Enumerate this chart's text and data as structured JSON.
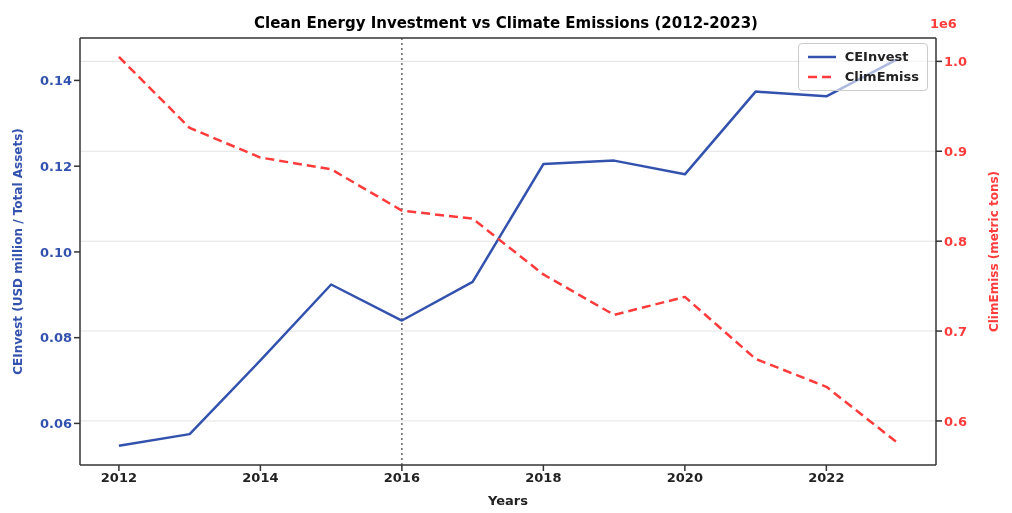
{
  "chart_data": {
    "type": "line",
    "title": "Clean Energy Investment vs Climate Emissions (2012-2023)",
    "xlabel": "Years",
    "ylabel": "CEInvest (USD million / Total Assets)",
    "y2label": "ClimEmiss (metric tons)",
    "x": [
      2012,
      2013,
      2014,
      2015,
      2016,
      2017,
      2018,
      2019,
      2020,
      2021,
      2022,
      2023
    ],
    "series": [
      {
        "name": "CEInvest",
        "color": "#3352ae",
        "line_style": "solid",
        "values": [
          0.0548,
          0.0575,
          0.0747,
          0.0924,
          0.084,
          0.093,
          0.1205,
          0.1213,
          0.1181,
          0.1374,
          0.1363,
          0.1449
        ]
      },
      {
        "name": "ClimEmiss",
        "color": "#ff3b3b",
        "line_style": "dashed",
        "axis": "y2",
        "values": [
          1.005,
          0.926,
          0.893,
          0.88,
          0.834,
          0.825,
          0.763,
          0.718,
          0.738,
          0.669,
          0.638,
          0.576
        ]
      }
    ],
    "xlim": [
      2011.45,
      2023.55
    ],
    "xticks": [
      2012,
      2014,
      2016,
      2018,
      2020,
      2022
    ],
    "ylim": [
      0.0503,
      0.1499
    ],
    "yticks": [
      0.06,
      0.08,
      {
        "value": 0.1,
        "label": "0.10"
      },
      0.12,
      0.14
    ],
    "y2lim": [
      0.551,
      1.026
    ],
    "y2ticks": [
      0.6,
      0.7,
      0.8,
      0.9,
      {
        "value": 1.0,
        "label": "1.0"
      }
    ],
    "annotations": [
      "1e6"
    ],
    "ref_lines": [
      {
        "axis": "x",
        "value": 2016,
        "color": "#666666",
        "line_style": "dotted"
      }
    ],
    "grid": "y2",
    "legend": "top right",
    "marker": "none"
  }
}
